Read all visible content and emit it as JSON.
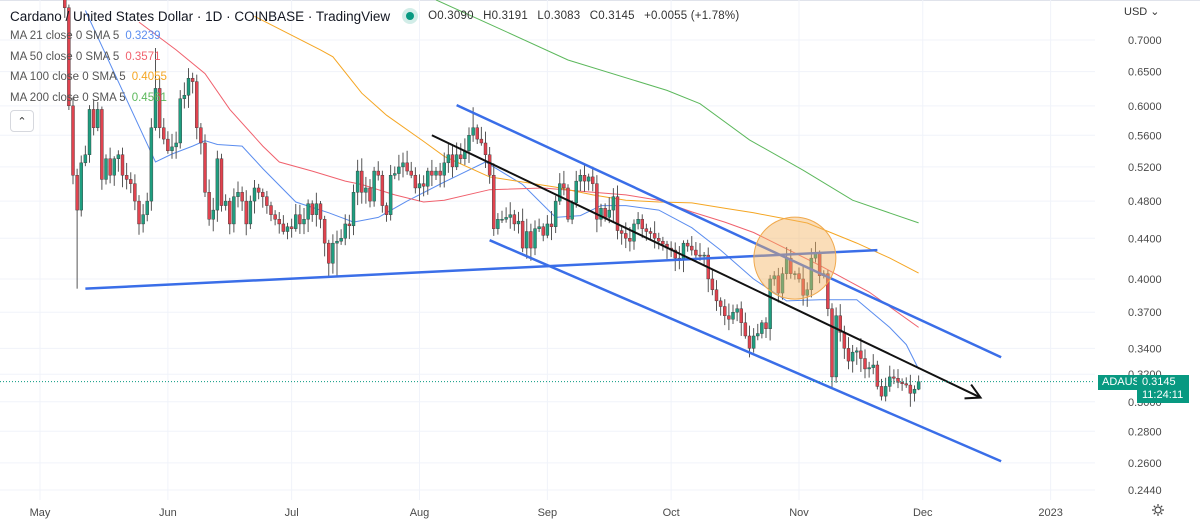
{
  "header": {
    "title": "Cardano / United States Dollar · 1D · COINBASE · TradingView",
    "status_color": "#089981",
    "ohlc": {
      "open": "O0.3090",
      "high": "H0.3191",
      "low": "L0.3083",
      "close": "C0.3145",
      "change": "+0.0055 (+1.78%)"
    },
    "collapse_icon": "chevron-up-icon"
  },
  "price_axis": {
    "currency_label": "USD",
    "scale": "log",
    "ticks": [
      "0.7000",
      "0.6500",
      "0.6000",
      "0.5600",
      "0.5200",
      "0.4800",
      "0.4400",
      "0.4000",
      "0.3700",
      "0.3400",
      "0.3200",
      "0.3000",
      "0.2800",
      "0.2600",
      "0.2440"
    ],
    "settings_icon": "gear-icon"
  },
  "time_axis": {
    "ticks": [
      {
        "label": "May",
        "date": "2022-05-01"
      },
      {
        "label": "Jun",
        "date": "2022-06-01"
      },
      {
        "label": "Jul",
        "date": "2022-07-01"
      },
      {
        "label": "Aug",
        "date": "2022-08-01"
      },
      {
        "label": "Sep",
        "date": "2022-09-01"
      },
      {
        "label": "Oct",
        "date": "2022-10-01"
      },
      {
        "label": "Nov",
        "date": "2022-11-01"
      },
      {
        "label": "Dec",
        "date": "2022-12-01"
      },
      {
        "label": "2023",
        "date": "2023-01-01"
      }
    ]
  },
  "last_price": {
    "symbol": "ADAUSD",
    "price": "0.3145",
    "countdown": "11:24:11",
    "value": 0.3145,
    "color": "#089981"
  },
  "chart_data": {
    "type": "candlestick",
    "title": "Cardano / United States Dollar · 1D · COINBASE · TradingView",
    "interval": "1D",
    "y_scale": "log",
    "ylim": [
      0.244,
      0.72
    ],
    "xlim": [
      "2022-05-01",
      "2023-01-04"
    ],
    "grid": true,
    "up_color": "#1f9e80",
    "down_color": "#e0434f",
    "start_date": "2022-05-06",
    "first_open": 0.79,
    "close": [
      0.78,
      0.755,
      0.6,
      0.51,
      0.47,
      0.525,
      0.535,
      0.595,
      0.57,
      0.595,
      0.505,
      0.53,
      0.51,
      0.53,
      0.535,
      0.51,
      0.505,
      0.5,
      0.48,
      0.455,
      0.465,
      0.48,
      0.57,
      0.625,
      0.57,
      0.555,
      0.54,
      0.545,
      0.55,
      0.61,
      0.615,
      0.64,
      0.635,
      0.57,
      0.55,
      0.49,
      0.46,
      0.47,
      0.53,
      0.475,
      0.48,
      0.455,
      0.485,
      0.49,
      0.48,
      0.455,
      0.48,
      0.495,
      0.49,
      0.485,
      0.475,
      0.465,
      0.46,
      0.455,
      0.447,
      0.452,
      0.45,
      0.465,
      0.455,
      0.46,
      0.477,
      0.465,
      0.477,
      0.46,
      0.435,
      0.415,
      0.435,
      0.437,
      0.44,
      0.455,
      0.453,
      0.49,
      0.515,
      0.49,
      0.495,
      0.48,
      0.515,
      0.51,
      0.475,
      0.465,
      0.51,
      0.512,
      0.52,
      0.525,
      0.515,
      0.51,
      0.495,
      0.5,
      0.497,
      0.515,
      0.51,
      0.515,
      0.51,
      0.525,
      0.535,
      0.52,
      0.535,
      0.53,
      0.54,
      0.56,
      0.57,
      0.555,
      0.55,
      0.535,
      0.51,
      0.45,
      0.46,
      0.46,
      0.462,
      0.465,
      0.455,
      0.458,
      0.43,
      0.447,
      0.43,
      0.45,
      0.452,
      0.443,
      0.455,
      0.452,
      0.48,
      0.5,
      0.495,
      0.46,
      0.478,
      0.503,
      0.51,
      0.503,
      0.508,
      0.5,
      0.46,
      0.472,
      0.462,
      0.47,
      0.485,
      0.448,
      0.445,
      0.44,
      0.437,
      0.455,
      0.46,
      0.45,
      0.447,
      0.445,
      0.44,
      0.437,
      0.434,
      0.43,
      0.428,
      0.42,
      0.418,
      0.435,
      0.432,
      0.428,
      0.423,
      0.422,
      0.423,
      0.4,
      0.39,
      0.38,
      0.375,
      0.367,
      0.364,
      0.37,
      0.373,
      0.361,
      0.35,
      0.34,
      0.35,
      0.352,
      0.361,
      0.356,
      0.4,
      0.403,
      0.387,
      0.405,
      0.42,
      0.405,
      0.405,
      0.4,
      0.385,
      0.39,
      0.42,
      0.425,
      0.403,
      0.405,
      0.373,
      0.318,
      0.367,
      0.353,
      0.34,
      0.33,
      0.337,
      0.338,
      0.332,
      0.324,
      0.325,
      0.327,
      0.311,
      0.304,
      0.311,
      0.318,
      0.317,
      0.314,
      0.313,
      0.312,
      0.306,
      0.309,
      0.3145
    ],
    "notable_wicks": [
      {
        "date": "2022-05-10",
        "low": 0.391
      },
      {
        "date": "2022-05-29",
        "high": 0.687
      },
      {
        "date": "2022-07-12",
        "low": 0.403
      },
      {
        "date": "2022-08-14",
        "high": 0.598
      },
      {
        "date": "2022-11-30",
        "high": 0.3191,
        "low": 0.3083
      }
    ],
    "moving_averages": [
      {
        "name": "MA 21 close 0 SMA 5",
        "value": "0.3239",
        "color": "#5b8def",
        "points": [
          [
            "2022-05-12",
            0.75
          ],
          [
            "2022-05-29",
            0.526
          ],
          [
            "2022-06-02",
            0.536
          ],
          [
            "2022-06-07",
            0.546
          ],
          [
            "2022-06-10",
            0.553
          ],
          [
            "2022-06-13",
            0.548
          ],
          [
            "2022-06-19",
            0.546
          ],
          [
            "2022-06-24",
            0.518
          ],
          [
            "2022-07-02",
            0.479
          ],
          [
            "2022-07-10",
            0.467
          ],
          [
            "2022-07-16",
            0.457
          ],
          [
            "2022-07-22",
            0.462
          ],
          [
            "2022-07-29",
            0.48
          ],
          [
            "2022-08-07",
            0.502
          ],
          [
            "2022-08-10",
            0.509
          ],
          [
            "2022-08-17",
            0.526
          ],
          [
            "2022-08-26",
            0.499
          ],
          [
            "2022-09-03",
            0.462
          ],
          [
            "2022-09-09",
            0.464
          ],
          [
            "2022-09-14",
            0.475
          ],
          [
            "2022-09-20",
            0.475
          ],
          [
            "2022-09-28",
            0.47
          ],
          [
            "2022-10-06",
            0.451
          ],
          [
            "2022-10-13",
            0.428
          ],
          [
            "2022-10-21",
            0.4
          ],
          [
            "2022-10-29",
            0.38
          ],
          [
            "2022-11-06",
            0.381
          ],
          [
            "2022-11-15",
            0.381
          ],
          [
            "2022-11-23",
            0.357
          ],
          [
            "2022-11-27",
            0.343
          ],
          [
            "2022-11-30",
            0.3239
          ]
        ]
      },
      {
        "name": "MA 50 close 0 SMA 5",
        "value": "0.3571",
        "color": "#f0616d",
        "points": [
          [
            "2022-05-25",
            0.73
          ],
          [
            "2022-06-03",
            0.684
          ],
          [
            "2022-06-10",
            0.647
          ],
          [
            "2022-06-16",
            0.595
          ],
          [
            "2022-06-24",
            0.546
          ],
          [
            "2022-06-28",
            0.526
          ],
          [
            "2022-07-06",
            0.515
          ],
          [
            "2022-07-14",
            0.503
          ],
          [
            "2022-07-18",
            0.499
          ],
          [
            "2022-07-26",
            0.487
          ],
          [
            "2022-08-02",
            0.479
          ],
          [
            "2022-08-07",
            0.481
          ],
          [
            "2022-08-18",
            0.493
          ],
          [
            "2022-08-31",
            0.495
          ],
          [
            "2022-09-12",
            0.49
          ],
          [
            "2022-09-20",
            0.487
          ],
          [
            "2022-09-28",
            0.481
          ],
          [
            "2022-10-06",
            0.468
          ],
          [
            "2022-10-14",
            0.457
          ],
          [
            "2022-10-21",
            0.446
          ],
          [
            "2022-11-06",
            0.413
          ],
          [
            "2022-11-18",
            0.388
          ],
          [
            "2022-11-30",
            0.3571
          ]
        ]
      },
      {
        "name": "MA 100 close 0 SMA 5",
        "value": "0.4055",
        "color": "#f5a623",
        "points": [
          [
            "2022-06-22",
            0.74
          ],
          [
            "2022-07-08",
            0.684
          ],
          [
            "2022-07-11",
            0.673
          ],
          [
            "2022-07-18",
            0.618
          ],
          [
            "2022-07-24",
            0.587
          ],
          [
            "2022-08-02",
            0.552
          ],
          [
            "2022-08-07",
            0.533
          ],
          [
            "2022-08-10",
            0.526
          ],
          [
            "2022-08-18",
            0.508
          ],
          [
            "2022-08-26",
            0.502
          ],
          [
            "2022-09-03",
            0.496
          ],
          [
            "2022-09-12",
            0.487
          ],
          [
            "2022-09-20",
            0.481
          ],
          [
            "2022-09-28",
            0.479
          ],
          [
            "2022-10-06",
            0.478
          ],
          [
            "2022-10-14",
            0.472
          ],
          [
            "2022-10-21",
            0.467
          ],
          [
            "2022-11-03",
            0.456
          ],
          [
            "2022-11-15",
            0.435
          ],
          [
            "2022-11-23",
            0.42
          ],
          [
            "2022-11-30",
            0.4055
          ]
        ]
      },
      {
        "name": "MA 200 close 0 SMA 5",
        "value": "0.4561",
        "color": "#5cb85c",
        "points": [
          [
            "2022-08-05",
            0.769
          ],
          [
            "2022-08-21",
            0.717
          ],
          [
            "2022-09-06",
            0.668
          ],
          [
            "2022-09-30",
            0.622
          ],
          [
            "2022-10-08",
            0.603
          ],
          [
            "2022-10-20",
            0.554
          ],
          [
            "2022-11-02",
            0.516
          ],
          [
            "2022-11-14",
            0.481
          ],
          [
            "2022-11-30",
            0.4561
          ]
        ]
      }
    ],
    "drawings": [
      {
        "kind": "trendline",
        "color": "#3a6ee8",
        "from": [
          "2022-05-12",
          0.391
        ],
        "to": [
          "2022-11-20",
          0.428
        ]
      },
      {
        "kind": "trendline",
        "color": "#3a6ee8",
        "from": [
          "2022-08-10",
          0.601
        ],
        "to": [
          "2022-12-20",
          0.333
        ]
      },
      {
        "kind": "trendline",
        "color": "#3a6ee8",
        "from": [
          "2022-08-18",
          0.438
        ],
        "to": [
          "2022-12-20",
          0.261
        ]
      },
      {
        "kind": "arrow",
        "color": "#111111",
        "from": [
          "2022-08-04",
          0.56
        ],
        "to": [
          "2022-12-15",
          0.303
        ]
      },
      {
        "kind": "circle",
        "color": "#f5b461",
        "center": [
          "2022-10-31",
          0.42
        ]
      }
    ]
  }
}
